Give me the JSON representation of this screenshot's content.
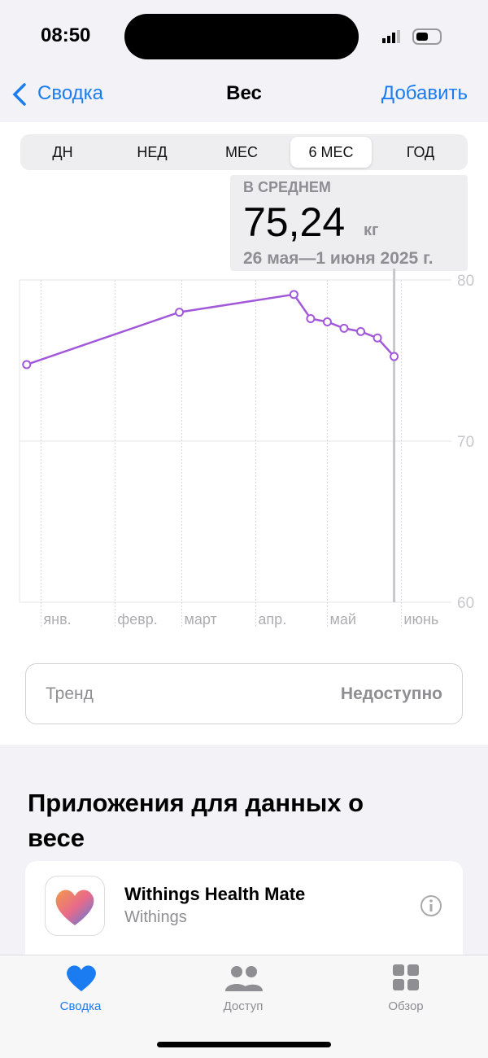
{
  "status_bar": {
    "time": "08:50"
  },
  "nav": {
    "back": "Сводка",
    "title": "Вес",
    "action": "Добавить"
  },
  "segments": {
    "items": [
      "ДН",
      "НЕД",
      "МЕС",
      "6 МЕС",
      "ГОД"
    ],
    "selected": 3
  },
  "summary": {
    "label": "В СРЕДНЕМ",
    "value": "75,24",
    "unit": "кг",
    "range": "26 мая—1 июня 2025 г."
  },
  "chart_data": {
    "type": "line",
    "x": [
      -5,
      59,
      107,
      114,
      121,
      128,
      135,
      142,
      149
    ],
    "series": [
      {
        "color": "#a259d9",
        "values": [
          74.75,
          78.0,
          79.1,
          77.6,
          77.4,
          77.0,
          76.8,
          76.4,
          75.25
        ]
      }
    ],
    "xlim": [
      -8,
      173
    ],
    "xticks": [
      {
        "value": 1,
        "label": "янв."
      },
      {
        "value": 32,
        "label": "февр."
      },
      {
        "value": 60,
        "label": "март"
      },
      {
        "value": 91,
        "label": "апр."
      },
      {
        "value": 121,
        "label": "май"
      },
      {
        "value": 152,
        "label": "июнь"
      }
    ],
    "ylim": [
      60,
      80
    ],
    "yticks": [
      60,
      70,
      80
    ],
    "grid": true
  },
  "trend": {
    "label": "Тренд",
    "value": "Недоступно"
  },
  "apps": {
    "title": "Приложения для данных о весе",
    "items": [
      {
        "name": "Withings Health Mate",
        "developer": "Withings"
      }
    ]
  },
  "tab_bar": {
    "items": [
      "Сводка",
      "Доступ",
      "Обзор"
    ],
    "selected": 0
  }
}
